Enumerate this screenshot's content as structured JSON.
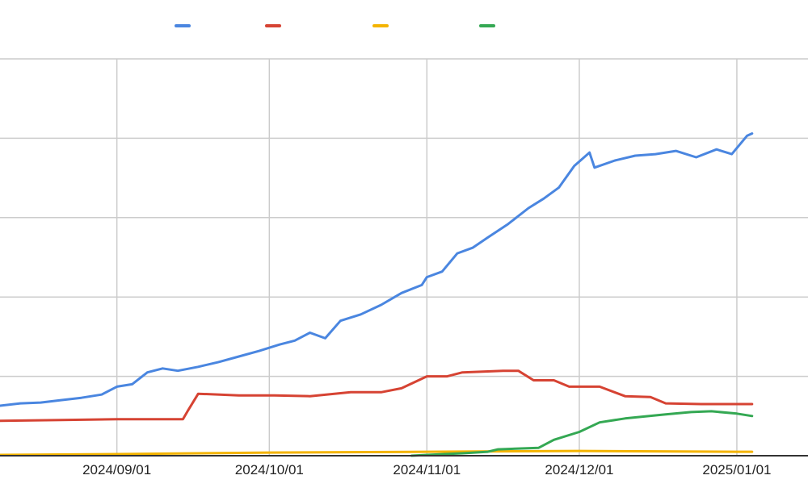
{
  "chart_data": {
    "type": "line",
    "title": "",
    "xlabel": "",
    "ylabel": "",
    "x_tick_labels": [
      "2024/09/01",
      "2024/10/01",
      "2024/11/01",
      "2024/12/01",
      "2025/01/01"
    ],
    "x_tick_dates": [
      "2024-09-01",
      "2024-10-01",
      "2024-11-01",
      "2024-12-01",
      "2025-01-01"
    ],
    "xlim": [
      "2024-08-09",
      "2025-01-15"
    ],
    "ylim": [
      0,
      500
    ],
    "y_gridlines": [
      0,
      100,
      200,
      300,
      400,
      500
    ],
    "grid": true,
    "legend_position": "top",
    "legend_obscured": true,
    "series": [
      {
        "name": "",
        "color": "#4a86e0",
        "points": [
          [
            "2024-08-09",
            63
          ],
          [
            "2024-08-13",
            66
          ],
          [
            "2024-08-17",
            67
          ],
          [
            "2024-08-21",
            70
          ],
          [
            "2024-08-25",
            73
          ],
          [
            "2024-08-29",
            77
          ],
          [
            "2024-09-01",
            87
          ],
          [
            "2024-09-04",
            90
          ],
          [
            "2024-09-07",
            105
          ],
          [
            "2024-09-10",
            110
          ],
          [
            "2024-09-13",
            107
          ],
          [
            "2024-09-17",
            112
          ],
          [
            "2024-09-21",
            118
          ],
          [
            "2024-09-25",
            125
          ],
          [
            "2024-09-29",
            132
          ],
          [
            "2024-10-03",
            140
          ],
          [
            "2024-10-06",
            145
          ],
          [
            "2024-10-09",
            155
          ],
          [
            "2024-10-12",
            148
          ],
          [
            "2024-10-15",
            170
          ],
          [
            "2024-10-19",
            178
          ],
          [
            "2024-10-23",
            190
          ],
          [
            "2024-10-27",
            205
          ],
          [
            "2024-10-31",
            215
          ],
          [
            "2024-11-01",
            225
          ],
          [
            "2024-11-04",
            232
          ],
          [
            "2024-11-07",
            255
          ],
          [
            "2024-11-10",
            262
          ],
          [
            "2024-11-13",
            275
          ],
          [
            "2024-11-17",
            292
          ],
          [
            "2024-11-21",
            312
          ],
          [
            "2024-11-24",
            324
          ],
          [
            "2024-11-27",
            338
          ],
          [
            "2024-11-30",
            365
          ],
          [
            "2024-12-03",
            382
          ],
          [
            "2024-12-04",
            363
          ],
          [
            "2024-12-08",
            372
          ],
          [
            "2024-12-12",
            378
          ],
          [
            "2024-12-16",
            380
          ],
          [
            "2024-12-20",
            384
          ],
          [
            "2024-12-24",
            376
          ],
          [
            "2024-12-28",
            386
          ],
          [
            "2024-12-31",
            380
          ],
          [
            "2025-01-03",
            403
          ],
          [
            "2025-01-04",
            406
          ]
        ]
      },
      {
        "name": "",
        "color": "#d64333",
        "points": [
          [
            "2024-08-09",
            44
          ],
          [
            "2024-08-21",
            45
          ],
          [
            "2024-09-01",
            46
          ],
          [
            "2024-09-14",
            46
          ],
          [
            "2024-09-15",
            57
          ],
          [
            "2024-09-17",
            78
          ],
          [
            "2024-09-25",
            76
          ],
          [
            "2024-10-02",
            76
          ],
          [
            "2024-10-09",
            75
          ],
          [
            "2024-10-17",
            80
          ],
          [
            "2024-10-23",
            80
          ],
          [
            "2024-10-27",
            85
          ],
          [
            "2024-11-01",
            100
          ],
          [
            "2024-11-05",
            100
          ],
          [
            "2024-11-08",
            105
          ],
          [
            "2024-11-16",
            107
          ],
          [
            "2024-11-19",
            107
          ],
          [
            "2024-11-22",
            95
          ],
          [
            "2024-11-26",
            95
          ],
          [
            "2024-11-29",
            87
          ],
          [
            "2024-12-05",
            87
          ],
          [
            "2024-12-10",
            75
          ],
          [
            "2024-12-15",
            74
          ],
          [
            "2024-12-18",
            66
          ],
          [
            "2024-12-25",
            65
          ],
          [
            "2025-01-04",
            65
          ]
        ]
      },
      {
        "name": "",
        "color": "#f4b400",
        "points": [
          [
            "2024-08-09",
            1
          ],
          [
            "2024-09-01",
            2
          ],
          [
            "2024-10-01",
            4
          ],
          [
            "2024-11-01",
            5
          ],
          [
            "2024-12-01",
            6
          ],
          [
            "2025-01-01",
            5
          ],
          [
            "2025-01-04",
            5
          ]
        ]
      },
      {
        "name": "",
        "color": "#34a853",
        "points": [
          [
            "2024-10-29",
            0
          ],
          [
            "2024-11-01",
            1
          ],
          [
            "2024-11-08",
            3
          ],
          [
            "2024-11-13",
            5
          ],
          [
            "2024-11-15",
            8
          ],
          [
            "2024-11-23",
            10
          ],
          [
            "2024-11-26",
            20
          ],
          [
            "2024-12-01",
            30
          ],
          [
            "2024-12-05",
            42
          ],
          [
            "2024-12-10",
            47
          ],
          [
            "2024-12-18",
            52
          ],
          [
            "2024-12-23",
            55
          ],
          [
            "2024-12-27",
            56
          ],
          [
            "2025-01-01",
            53
          ],
          [
            "2025-01-04",
            50
          ]
        ]
      }
    ]
  },
  "colors": {
    "grid": "#cccccc",
    "axis": "#333333",
    "background": "#ffffff"
  }
}
